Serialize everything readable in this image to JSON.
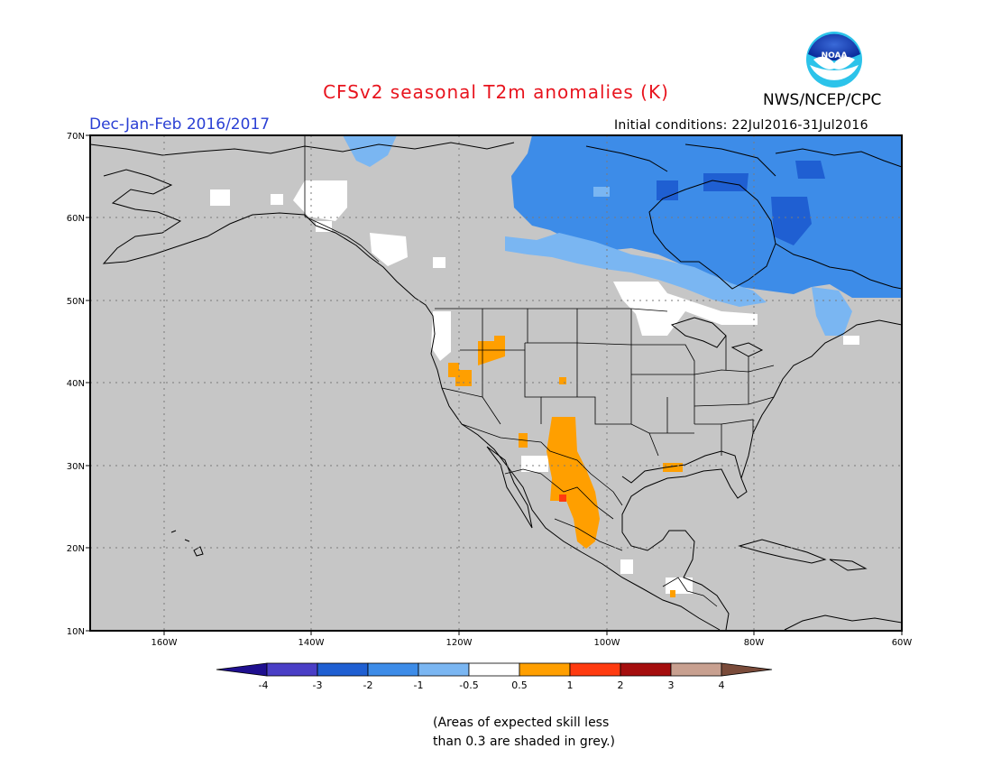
{
  "title": "CFSv2 seasonal T2m anomalies (K)",
  "agency": "NWS/NCEP/CPC",
  "logo_text": "NOAA",
  "period": "Dec-Jan-Feb 2016/2017",
  "initial_conditions": "Initial conditions: 22Jul2016-31Jul2016",
  "footnote_line1": "(Areas of expected skill less",
  "footnote_line2": "than 0.3 are shaded in grey.)",
  "lat_labels": [
    "70N",
    "60N",
    "50N",
    "40N",
    "30N",
    "20N",
    "10N"
  ],
  "lon_labels": [
    "160W",
    "140W",
    "120W",
    "100W",
    "80W",
    "60W"
  ],
  "colorbar": {
    "labels": [
      "-4",
      "-3",
      "-2",
      "-1",
      "-0.5",
      "0.5",
      "1",
      "2",
      "3",
      "4"
    ],
    "colors": [
      "#1f0f8f",
      "#4a3ec6",
      "#1f5fd2",
      "#3d8ce8",
      "#7ab6f2",
      "#ffffff",
      "#ff9f00",
      "#ff3b10",
      "#a50e0e",
      "#c8a090",
      "#7a4b3a"
    ]
  },
  "colors": {
    "skill_grey": "#c6c6c6",
    "title_red": "#e8141e",
    "period_blue": "#2a3fd4"
  }
}
